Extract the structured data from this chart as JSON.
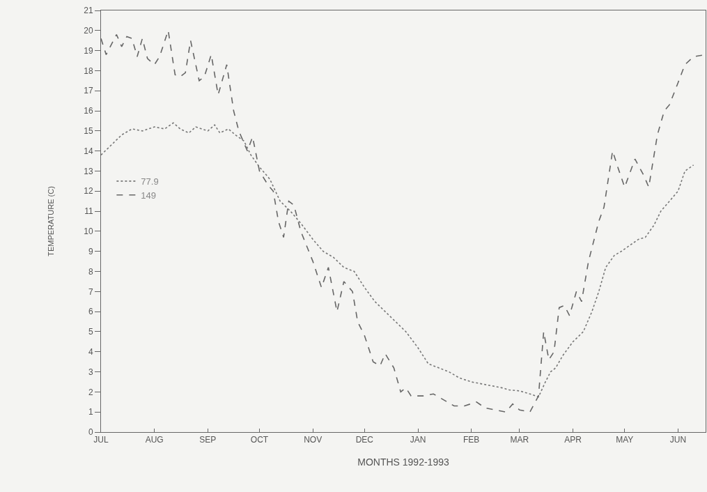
{
  "chart_data": {
    "type": "line",
    "xlabel": "MONTHS 1992-1993",
    "ylabel": "TEMPERATURE (C)",
    "xlim": [
      "1992-07-01",
      "1993-06-17"
    ],
    "ylim": [
      0,
      21
    ],
    "xticks": [
      {
        "value": "1992-07-01",
        "label": "JUL"
      },
      {
        "value": "1992-08-01",
        "label": "AUG"
      },
      {
        "value": "1992-09-01",
        "label": "SEP"
      },
      {
        "value": "1992-10-01",
        "label": "OCT"
      },
      {
        "value": "1992-11-01",
        "label": "NOV"
      },
      {
        "value": "1992-12-01",
        "label": "DEC"
      },
      {
        "value": "1993-01-01",
        "label": "JAN"
      },
      {
        "value": "1993-02-01",
        "label": "FEB"
      },
      {
        "value": "1993-03-01",
        "label": "MAR"
      },
      {
        "value": "1993-04-01",
        "label": "APR"
      },
      {
        "value": "1993-05-01",
        "label": "MAY"
      },
      {
        "value": "1993-06-01",
        "label": "JUN"
      }
    ],
    "yticks": [
      0,
      1,
      2,
      3,
      4,
      5,
      6,
      7,
      8,
      9,
      10,
      11,
      12,
      13,
      14,
      15,
      16,
      17,
      18,
      19,
      20,
      21
    ],
    "grid": false,
    "legend": "top left",
    "marker": "none",
    "series": [
      {
        "name": "77.9",
        "color": "#777777",
        "line_style": "dotted",
        "x": [
          "1992-07-01",
          "1992-07-07",
          "1992-07-13",
          "1992-07-19",
          "1992-07-25",
          "1992-08-01",
          "1992-08-07",
          "1992-08-12",
          "1992-08-16",
          "1992-08-21",
          "1992-08-25",
          "1992-09-01",
          "1992-09-05",
          "1992-09-08",
          "1992-09-13",
          "1992-09-17",
          "1992-09-22",
          "1992-09-26",
          "1992-10-01",
          "1992-10-07",
          "1992-10-13",
          "1992-10-19",
          "1992-10-25",
          "1992-11-01",
          "1992-11-07",
          "1992-11-13",
          "1992-11-19",
          "1992-11-25",
          "1992-12-01",
          "1992-12-07",
          "1992-12-13",
          "1992-12-19",
          "1992-12-25",
          "1993-01-01",
          "1993-01-07",
          "1993-01-13",
          "1993-01-19",
          "1993-01-25",
          "1993-02-01",
          "1993-02-07",
          "1993-02-13",
          "1993-02-19",
          "1993-02-23",
          "1993-03-01",
          "1993-03-07",
          "1993-03-12",
          "1993-03-16",
          "1993-03-19",
          "1993-03-22",
          "1993-03-26",
          "1993-04-01",
          "1993-04-07",
          "1993-04-12",
          "1993-04-16",
          "1993-04-20",
          "1993-04-25",
          "1993-04-29",
          "1993-05-04",
          "1993-05-09",
          "1993-05-13",
          "1993-05-18",
          "1993-05-22",
          "1993-05-27",
          "1993-06-01",
          "1993-06-05",
          "1993-06-10"
        ],
        "values": [
          13.8,
          14.3,
          14.8,
          15.1,
          15.0,
          15.2,
          15.1,
          15.4,
          15.1,
          14.9,
          15.2,
          15.0,
          15.3,
          14.9,
          15.1,
          14.8,
          14.5,
          13.8,
          13.2,
          12.6,
          11.5,
          11.0,
          10.4,
          9.6,
          9.0,
          8.7,
          8.2,
          8.0,
          7.2,
          6.5,
          6.0,
          5.5,
          5.0,
          4.2,
          3.4,
          3.2,
          3.0,
          2.7,
          2.5,
          2.4,
          2.3,
          2.2,
          2.1,
          2.05,
          1.9,
          1.75,
          2.5,
          3.0,
          3.2,
          3.8,
          4.5,
          5.0,
          6.0,
          7.0,
          8.2,
          8.8,
          9.0,
          9.3,
          9.6,
          9.7,
          10.3,
          11.0,
          11.5,
          12.0,
          13.0,
          13.3
        ]
      },
      {
        "name": "149",
        "color": "#666666",
        "line_style": "dashed",
        "x": [
          "1992-07-01",
          "1992-07-04",
          "1992-07-10",
          "1992-07-13",
          "1992-07-16",
          "1992-07-19",
          "1992-07-22",
          "1992-07-25",
          "1992-07-28",
          "1992-08-01",
          "1992-08-04",
          "1992-08-09",
          "1992-08-13",
          "1992-08-16",
          "1992-08-19",
          "1992-08-22",
          "1992-08-27",
          "1992-08-30",
          "1992-09-03",
          "1992-09-07",
          "1992-09-12",
          "1992-09-16",
          "1992-09-19",
          "1992-09-24",
          "1992-09-27",
          "1992-10-01",
          "1992-10-06",
          "1992-10-09",
          "1992-10-12",
          "1992-10-15",
          "1992-10-18",
          "1992-10-21",
          "1992-10-25",
          "1992-11-01",
          "1992-11-06",
          "1992-11-10",
          "1992-11-15",
          "1992-11-19",
          "1992-11-24",
          "1992-11-27",
          "1992-12-01",
          "1992-12-06",
          "1992-12-10",
          "1992-12-13",
          "1992-12-18",
          "1992-12-22",
          "1992-12-25",
          "1992-12-28",
          "1993-01-04",
          "1993-01-10",
          "1993-01-16",
          "1993-01-22",
          "1993-01-28",
          "1993-02-04",
          "1993-02-09",
          "1993-02-15",
          "1993-02-21",
          "1993-02-25",
          "1993-03-01",
          "1993-03-07",
          "1993-03-12",
          "1993-03-15",
          "1993-03-18",
          "1993-03-21",
          "1993-03-24",
          "1993-03-27",
          "1993-03-30",
          "1993-04-03",
          "1993-04-06",
          "1993-04-10",
          "1993-04-16",
          "1993-04-19",
          "1993-04-24",
          "1993-04-27",
          "1993-05-01",
          "1993-05-07",
          "1993-05-12",
          "1993-05-15",
          "1993-05-20",
          "1993-05-24",
          "1993-05-27",
          "1993-06-01",
          "1993-06-05",
          "1993-06-10",
          "1993-06-17"
        ],
        "values": [
          19.6,
          18.8,
          19.8,
          19.2,
          19.7,
          19.6,
          18.7,
          19.6,
          18.6,
          18.3,
          18.7,
          20.0,
          17.8,
          17.7,
          17.9,
          19.5,
          17.5,
          17.7,
          18.8,
          16.8,
          18.3,
          16.0,
          15.0,
          14.0,
          14.7,
          13.0,
          12.3,
          12.0,
          10.5,
          9.7,
          11.5,
          11.3,
          10.0,
          8.5,
          7.2,
          8.2,
          6.0,
          7.5,
          7.0,
          5.5,
          4.8,
          3.5,
          3.3,
          3.9,
          3.2,
          2.0,
          2.2,
          1.8,
          1.8,
          1.9,
          1.6,
          1.3,
          1.3,
          1.5,
          1.2,
          1.1,
          1.0,
          1.4,
          1.1,
          1.0,
          1.8,
          5.0,
          3.6,
          4.0,
          6.2,
          6.3,
          5.8,
          7.0,
          6.5,
          8.5,
          10.5,
          11.2,
          14.0,
          13.2,
          12.2,
          13.6,
          12.8,
          12.2,
          14.8,
          16.0,
          16.3,
          17.4,
          18.3,
          18.7,
          18.8
        ]
      }
    ]
  }
}
